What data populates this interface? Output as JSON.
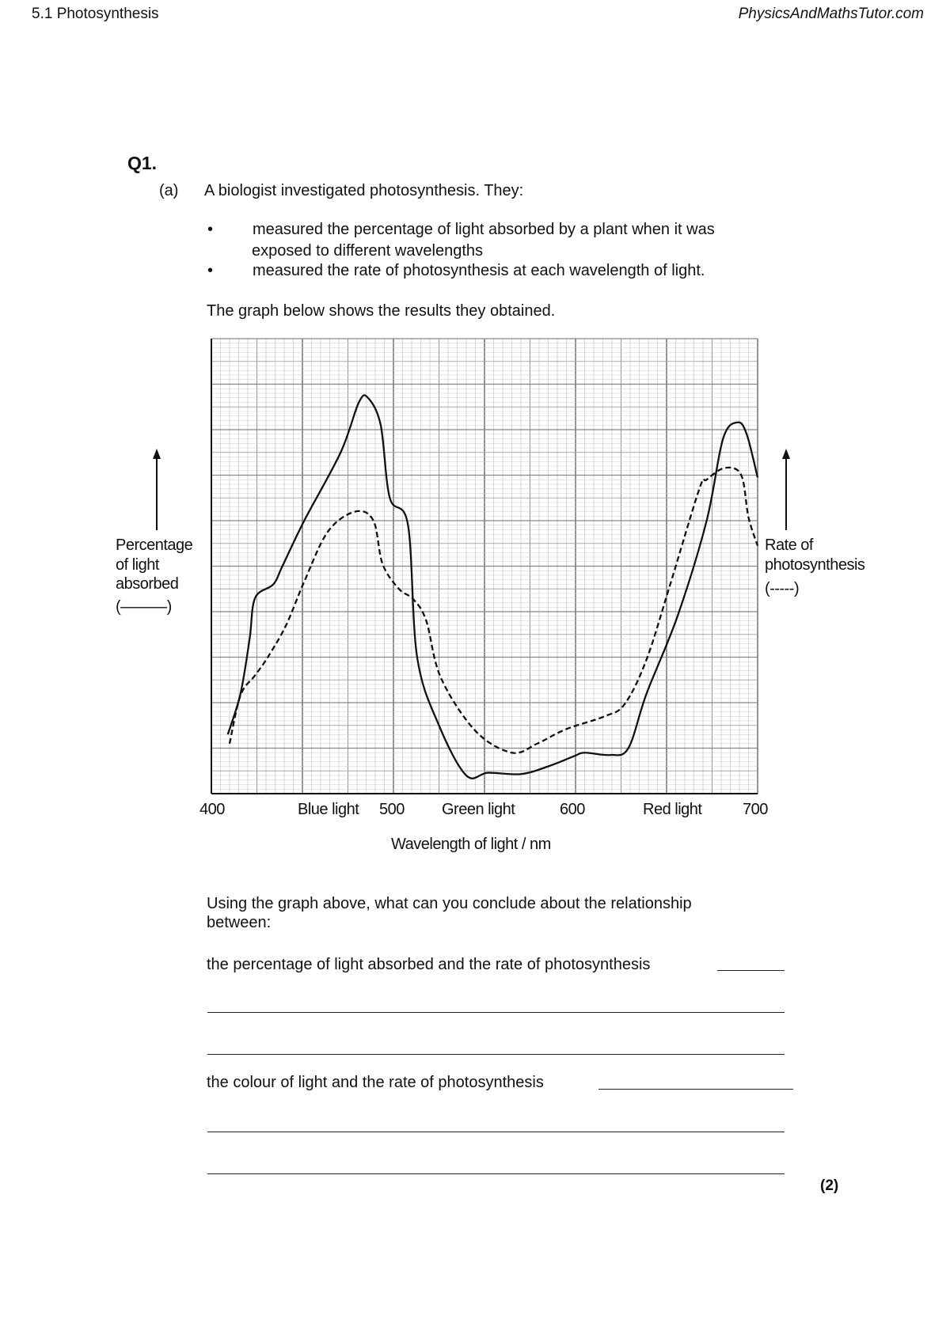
{
  "header": {
    "left": "5.1 Photosynthesis",
    "right": "PhysicsAndMathsTutor.com"
  },
  "question": {
    "number": "Q1.",
    "part": "(a)",
    "intro": "A biologist investigated photosynthesis. They:",
    "bullets": [
      {
        "line1": "measured the percentage of light absorbed by a plant when it was",
        "line2": "exposed to different wavelengths"
      },
      {
        "line1": "measured the rate of photosynthesis at each wavelength of light.",
        "line2": ""
      }
    ],
    "graph_intro": "The graph below shows the results they obtained.",
    "prompt_line1": "Using the graph above, what can you conclude about the relationship",
    "prompt_line2": "between:",
    "sub1": "the percentage of light absorbed and the rate of photosynthesis",
    "sub2": "the colour of light and the rate of photosynthesis",
    "marks": "(2)"
  },
  "chart_data": {
    "type": "line",
    "title": "",
    "xlabel": "Wavelength of light / nm",
    "ylabel_left": [
      "Percentage",
      "of light",
      "absorbed",
      "(———)"
    ],
    "ylabel_right": [
      "Rate of",
      "photosynthesis",
      "(-----)"
    ],
    "xlim": [
      400,
      700
    ],
    "ylim": [
      0,
      100
    ],
    "grid": true,
    "x_tick_labels": [
      "400",
      "500",
      "600",
      "700"
    ],
    "x_region_labels": [
      "Blue light",
      "Green light",
      "Red light"
    ],
    "series": [
      {
        "name": "Percentage of light absorbed",
        "style": "solid",
        "color": "#111111",
        "points": [
          [
            409,
            13
          ],
          [
            416,
            22
          ],
          [
            421,
            34
          ],
          [
            424,
            43
          ],
          [
            434,
            46
          ],
          [
            439,
            50
          ],
          [
            451,
            60
          ],
          [
            471,
            75
          ],
          [
            481,
            86
          ],
          [
            486,
            87
          ],
          [
            493,
            81
          ],
          [
            498,
            65
          ],
          [
            508,
            59
          ],
          [
            513,
            30
          ],
          [
            525,
            15
          ],
          [
            540,
            4
          ],
          [
            552,
            4.6
          ],
          [
            570,
            4.3
          ],
          [
            585,
            6
          ],
          [
            599,
            8.2
          ],
          [
            605,
            9
          ],
          [
            619,
            8.5
          ],
          [
            629,
            10
          ],
          [
            639,
            22
          ],
          [
            656,
            39
          ],
          [
            672,
            60
          ],
          [
            681,
            78
          ],
          [
            689,
            81.6
          ],
          [
            694,
            79
          ],
          [
            700,
            69.5
          ]
        ]
      },
      {
        "name": "Rate of photosynthesis",
        "style": "dashed",
        "color": "#111111",
        "points": [
          [
            410,
            11
          ],
          [
            416,
            21.6
          ],
          [
            424,
            26
          ],
          [
            431,
            30
          ],
          [
            441,
            37
          ],
          [
            451,
            46.6
          ],
          [
            464,
            57.6
          ],
          [
            479,
            62
          ],
          [
            489,
            60
          ],
          [
            494,
            50.5
          ],
          [
            503,
            45
          ],
          [
            511,
            42.7
          ],
          [
            518,
            38
          ],
          [
            526,
            25.5
          ],
          [
            545,
            13.8
          ],
          [
            565,
            9
          ],
          [
            579,
            11
          ],
          [
            595,
            14.2
          ],
          [
            616,
            17
          ],
          [
            627,
            19.7
          ],
          [
            639,
            29.5
          ],
          [
            652,
            46
          ],
          [
            668,
            67
          ],
          [
            672,
            69
          ],
          [
            682,
            71.6
          ],
          [
            691,
            70
          ],
          [
            695,
            60.7
          ],
          [
            700,
            54.5
          ]
        ]
      }
    ]
  }
}
